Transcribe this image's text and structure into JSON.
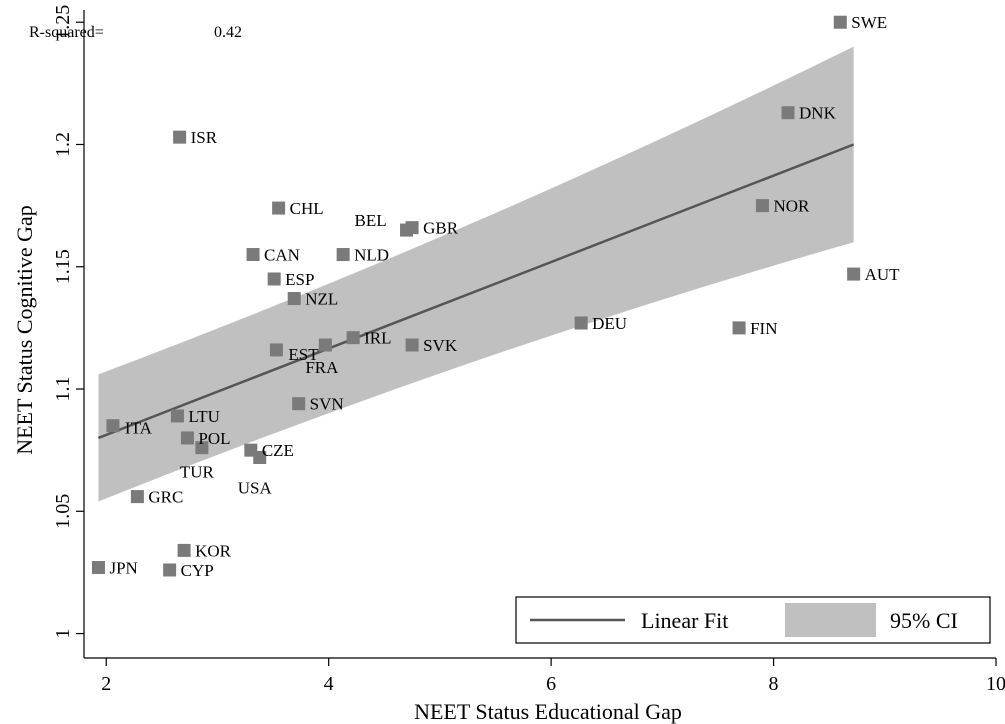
{
  "chart_data": {
    "type": "scatter",
    "xlabel": "NEET Status Educational Gap",
    "ylabel": "NEET Status Cognitive Gap",
    "xlim": [
      1.8,
      10
    ],
    "ylim": [
      0.99,
      1.255
    ],
    "xticks": [
      2,
      4,
      6,
      8,
      10
    ],
    "yticks": [
      1,
      1.05,
      1.1,
      1.15,
      1.2,
      1.25
    ],
    "xtick_labels": [
      "2",
      "4",
      "6",
      "8",
      "10"
    ],
    "ytick_labels": [
      "1",
      "1.05",
      "1.1",
      "1.15",
      "1.2",
      "1.25"
    ],
    "grid": false,
    "annotation": {
      "label": "R-squared=",
      "value": "0.42"
    },
    "points": [
      {
        "label": "SWE",
        "x": 8.6,
        "y": 1.25
      },
      {
        "label": "DNK",
        "x": 8.13,
        "y": 1.213
      },
      {
        "label": "ISR",
        "x": 2.66,
        "y": 1.203
      },
      {
        "label": "NOR",
        "x": 7.9,
        "y": 1.175
      },
      {
        "label": "CHL",
        "x": 3.55,
        "y": 1.174
      },
      {
        "label": "BEL",
        "x": 4.7,
        "y": 1.165
      },
      {
        "label": "GBR",
        "x": 4.75,
        "y": 1.166
      },
      {
        "label": "CAN",
        "x": 3.32,
        "y": 1.155
      },
      {
        "label": "NLD",
        "x": 4.13,
        "y": 1.155
      },
      {
        "label": "AUT",
        "x": 8.72,
        "y": 1.147
      },
      {
        "label": "ESP",
        "x": 3.51,
        "y": 1.145
      },
      {
        "label": "NZL",
        "x": 3.69,
        "y": 1.137
      },
      {
        "label": "DEU",
        "x": 6.27,
        "y": 1.127
      },
      {
        "label": "FIN",
        "x": 7.69,
        "y": 1.125
      },
      {
        "label": "IRL",
        "x": 4.22,
        "y": 1.121
      },
      {
        "label": "EST",
        "x": 3.53,
        "y": 1.116
      },
      {
        "label": "FRA",
        "x": 3.97,
        "y": 1.118
      },
      {
        "label": "SVK",
        "x": 4.75,
        "y": 1.118
      },
      {
        "label": "SVN",
        "x": 3.73,
        "y": 1.094
      },
      {
        "label": "LTU",
        "x": 2.64,
        "y": 1.089
      },
      {
        "label": "ITA",
        "x": 2.06,
        "y": 1.085
      },
      {
        "label": "POL",
        "x": 2.73,
        "y": 1.08
      },
      {
        "label": "TUR",
        "x": 2.86,
        "y": 1.076
      },
      {
        "label": "CZE",
        "x": 3.3,
        "y": 1.075
      },
      {
        "label": "USA",
        "x": 3.38,
        "y": 1.072
      },
      {
        "label": "GRC",
        "x": 2.28,
        "y": 1.056
      },
      {
        "label": "KOR",
        "x": 2.7,
        "y": 1.034
      },
      {
        "label": "JPN",
        "x": 1.93,
        "y": 1.027
      },
      {
        "label": "CYP",
        "x": 2.57,
        "y": 1.026
      }
    ],
    "fit": {
      "x": [
        1.93,
        8.72
      ],
      "y": [
        1.08,
        1.2
      ],
      "ci_upper": [
        1.106,
        1.24
      ],
      "ci_lower": [
        1.054,
        1.16
      ]
    },
    "legend": {
      "placement": "bottom-right",
      "entries": [
        {
          "name": "Linear Fit",
          "style": "line",
          "color": "#555555"
        },
        {
          "name": "95% CI",
          "style": "area",
          "color": "#c0c0c0"
        }
      ]
    },
    "colors": {
      "marker": "#7a7a7a",
      "fit_line": "#555555",
      "ci_band": "#c0c0c0",
      "axis": "#000000"
    }
  }
}
